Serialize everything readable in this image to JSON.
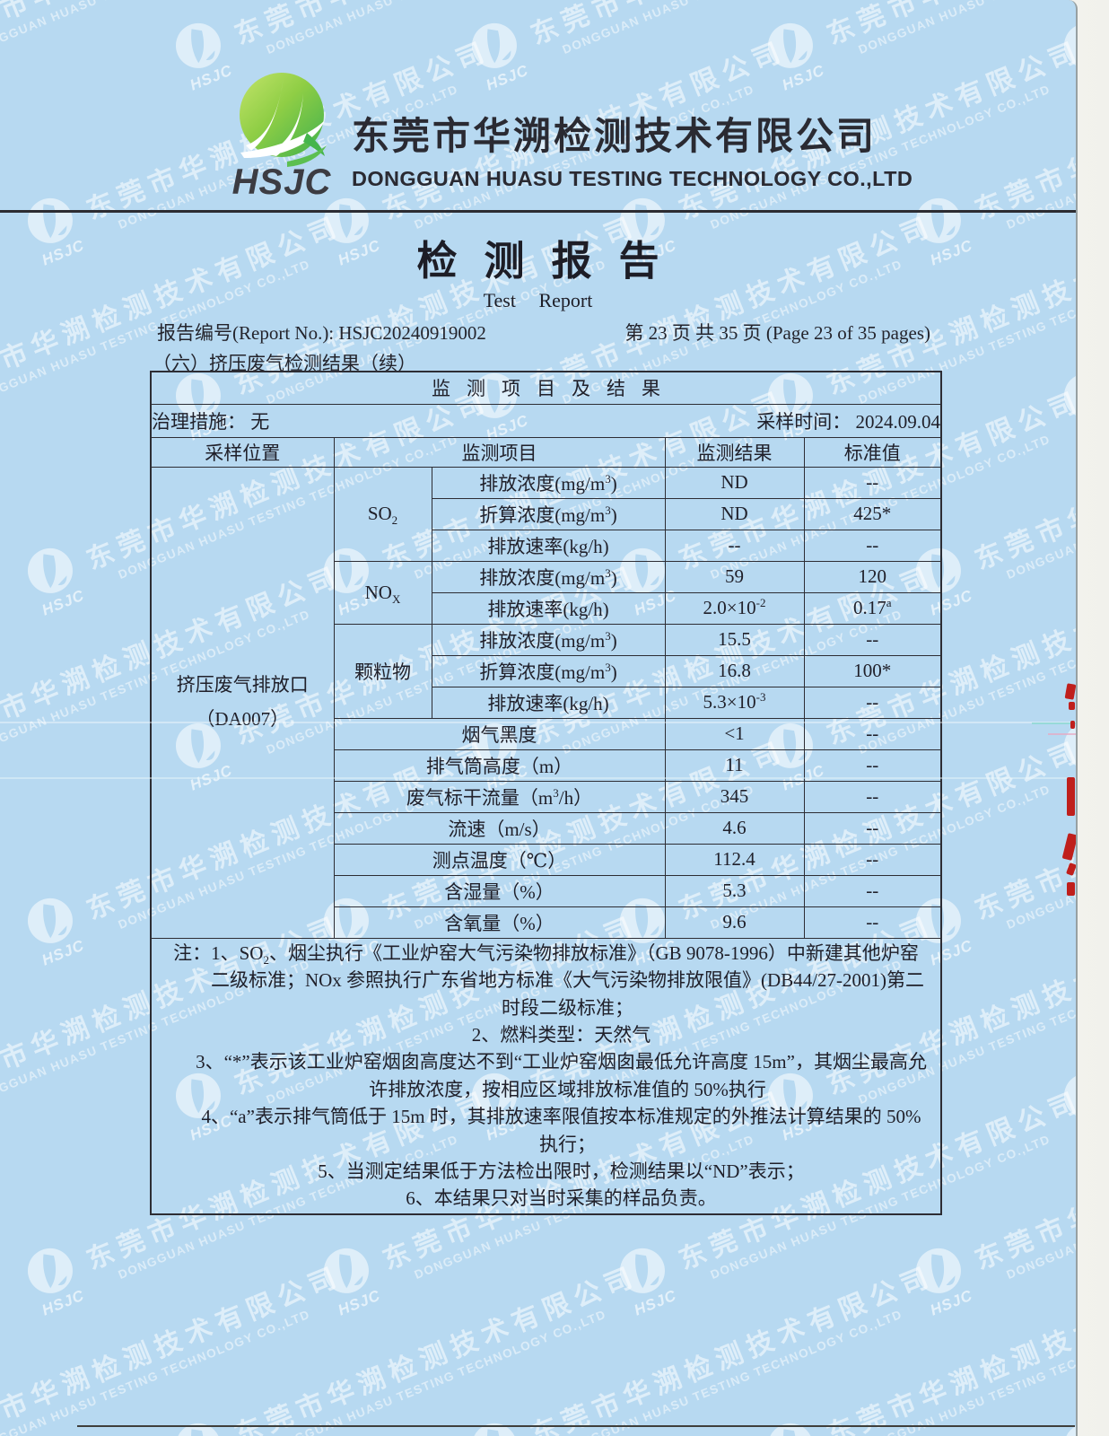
{
  "colors": {
    "page_bg": "#b7d9f1",
    "stamp_red": "#bf1f1c",
    "logo_green_light": "#b8e049",
    "logo_green_dark": "#45b54c"
  },
  "watermark": {
    "logo_text": "HSJC",
    "company_cn": "东莞市华溯检测技术有限公司",
    "company_en": "DONGGUAN HUASU TESTING TECHNOLOGY CO.,LTD"
  },
  "header": {
    "logo_text": "HSJC",
    "company_cn": "东莞市华溯检测技术有限公司",
    "company_en": "DONGGUAN HUASU TESTING TECHNOLOGY CO.,LTD"
  },
  "title": {
    "cn": "检测报告",
    "en": "Test Report"
  },
  "meta": {
    "report_no_line": "报告编号(Report No.): HSJC20240919002",
    "page_line": "第 23 页  共 35 页  (Page 23 of 35 pages)",
    "section_line": "（六）挤压废气检测结果（续）"
  },
  "table": {
    "title": "监测项目及结果",
    "treatment": "治理措施： 无",
    "sampling_time": "采样时间： 2024.09.04",
    "columns": {
      "location": "采样位置",
      "item": "监测项目",
      "result": "监测结果",
      "standard": "标准值"
    },
    "location": {
      "line1": "挤压废气排放口",
      "line2": "（DA007）"
    },
    "rows": [
      {
        "group": "SO~2~",
        "param": "排放浓度(mg/m^3^)",
        "result": "ND",
        "standard": "--"
      },
      {
        "param": "折算浓度(mg/m^3^)",
        "result": "ND",
        "standard": "425*"
      },
      {
        "param": "排放速率(kg/h)",
        "result": "--",
        "standard": "--"
      },
      {
        "group": "NO~X~",
        "param": "排放浓度(mg/m^3^)",
        "result": "59",
        "standard": "120"
      },
      {
        "param": "排放速率(kg/h)",
        "result": "2.0×10^-2^",
        "standard": "0.17^a^"
      },
      {
        "group": "颗粒物",
        "param": "排放浓度(mg/m^3^)",
        "result": "15.5",
        "standard": "--"
      },
      {
        "param": "折算浓度(mg/m^3^)",
        "result": "16.8",
        "standard": "100*"
      },
      {
        "param": "排放速率(kg/h)",
        "result": "5.3×10^-3^",
        "standard": "--"
      },
      {
        "param": "烟气黑度",
        "result": "<1",
        "standard": "--"
      },
      {
        "param": "排气筒高度（m）",
        "result": "11",
        "standard": "--"
      },
      {
        "param": "废气标干流量（m^3^/h）",
        "result": "345",
        "standard": "--"
      },
      {
        "param": "流速（m/s）",
        "result": "4.6",
        "standard": "--"
      },
      {
        "param": "测点温度（℃）",
        "result": "112.4",
        "standard": "--"
      },
      {
        "param": "含湿量（%）",
        "result": "5.3",
        "standard": "--"
      },
      {
        "param": "含氧量（%）",
        "result": "9.6",
        "standard": "--"
      }
    ]
  },
  "notes": {
    "lines": [
      "注：1、SO~2~、烟尘执行《工业炉窑大气污染物排放标准》（GB 9078-1996）中新建其他炉窑",
      "二级标准；NOx 参照执行广东省地方标准《大气污染物排放限值》(DB44/27-2001)第二",
      "时段二级标准；",
      "2、燃料类型：天然气",
      "3、“*”表示该工业炉窑烟囱高度达不到“工业炉窑烟囱最低允许高度 15m”，其烟尘最高允",
      "许排放浓度，按相应区域排放标准值的 50%执行",
      "4、“a”表示排气筒低于 15m 时，其排放速率限值按本标准规定的外推法计算结果的 50%",
      "执行；",
      "5、当测定结果低于方法检出限时，检测结果以“ND”表示；",
      "6、本结果只对当时采集的样品负责。"
    ]
  }
}
